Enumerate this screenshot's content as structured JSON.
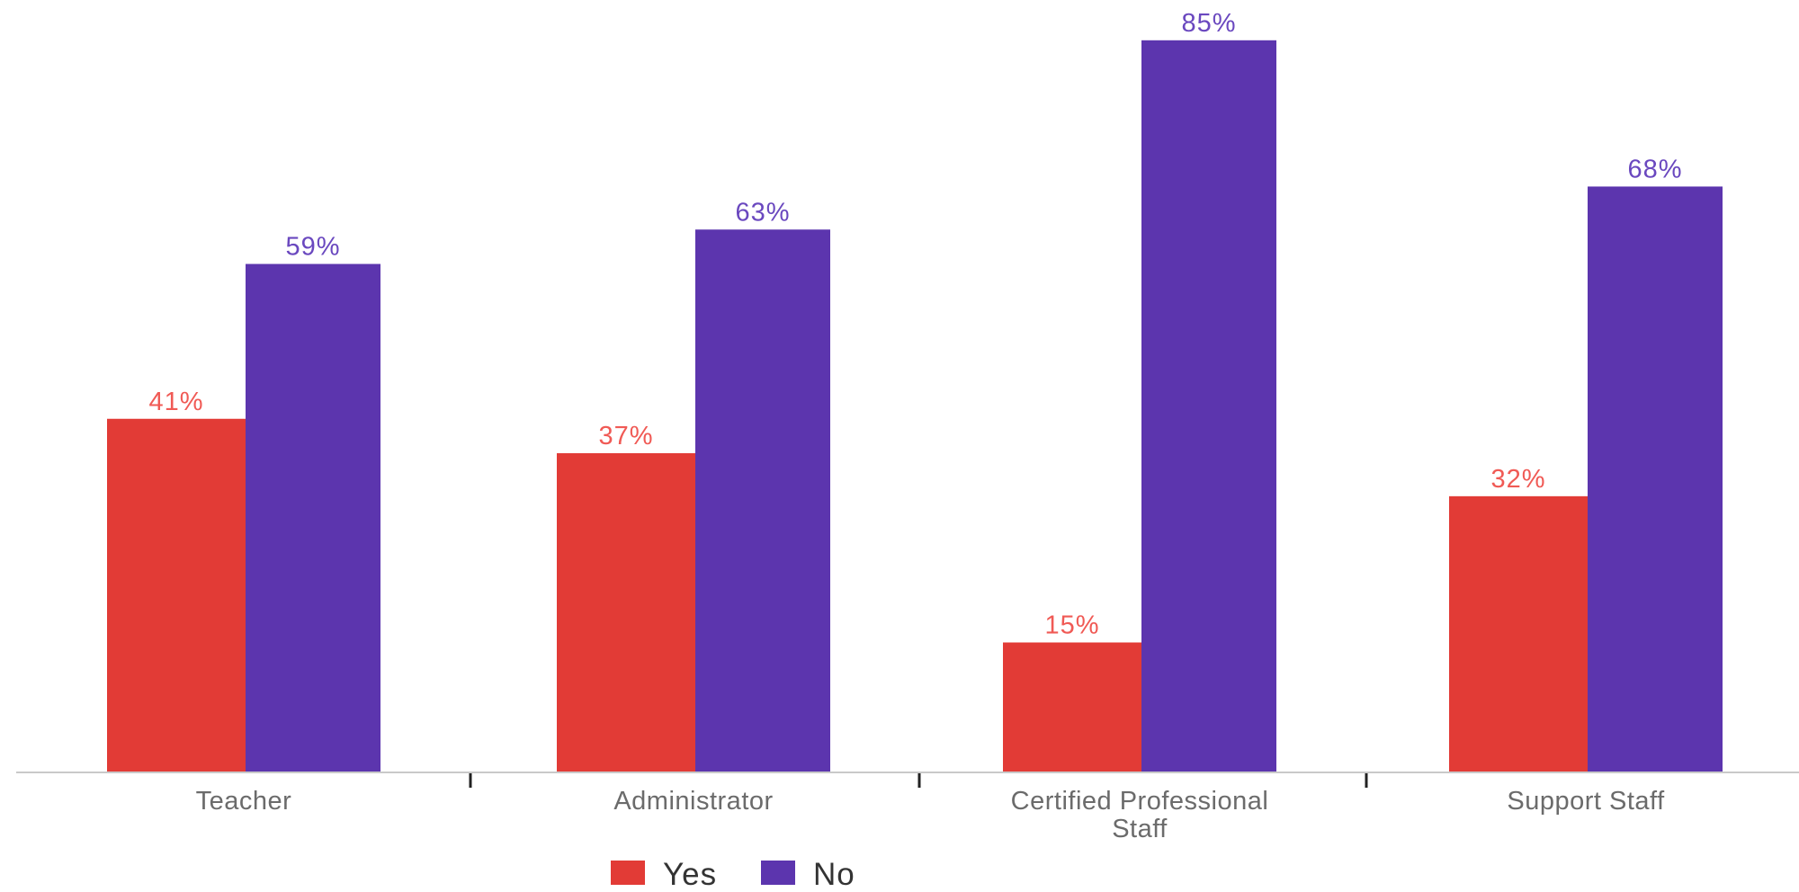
{
  "chart_data": {
    "type": "bar",
    "title": "",
    "xlabel": "",
    "ylabel": "",
    "ylim": [
      0,
      100
    ],
    "grid": false,
    "legend_position": "bottom-center",
    "value_format": "percent",
    "categories": [
      [
        "Teacher"
      ],
      [
        "Administrator"
      ],
      [
        "Certified Professional",
        "Staff"
      ],
      [
        "Support Staff"
      ]
    ],
    "series": [
      {
        "name": "Yes",
        "color": "#e23b36",
        "label_color": "#f05a55",
        "values": [
          41,
          37,
          15,
          32
        ]
      },
      {
        "name": "No",
        "color": "#5c35ae",
        "label_color": "#6a48bf",
        "values": [
          59,
          63,
          85,
          68
        ]
      }
    ],
    "colors": {
      "axis": "#c9c9c9",
      "tick": "#222222",
      "category_text": "#6b6b6b"
    }
  }
}
